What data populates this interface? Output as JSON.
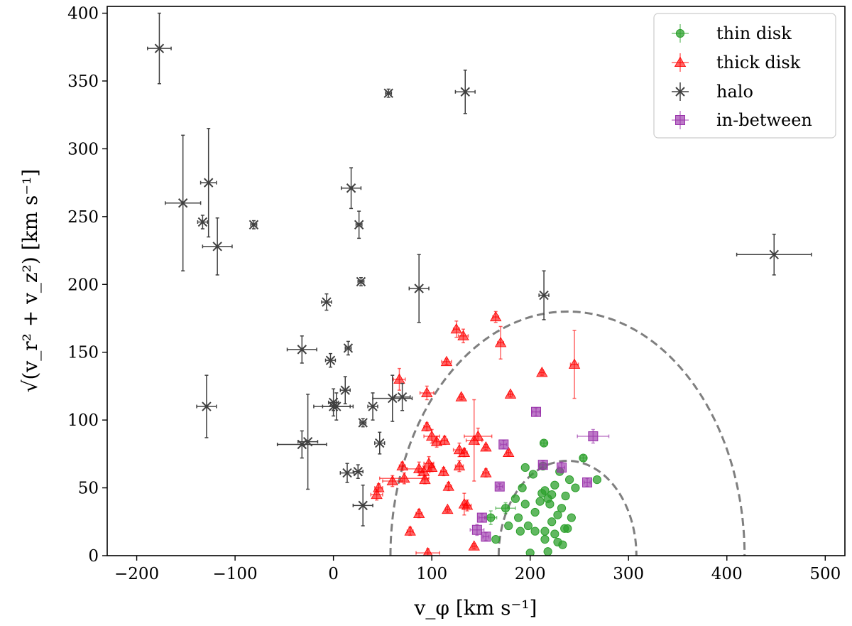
{
  "chart_data": {
    "type": "scatter",
    "title": "",
    "xlabel": "v_φ [km s⁻¹]",
    "ylabel": "√(v_r² + v_z²) [km s⁻¹]",
    "xlim": [
      -230,
      520
    ],
    "ylim": [
      0,
      405
    ],
    "x_ticks": [
      -200,
      -100,
      0,
      100,
      200,
      300,
      400,
      500
    ],
    "y_ticks": [
      0,
      50,
      100,
      150,
      200,
      250,
      300,
      350,
      400
    ],
    "grid": false,
    "legend_position": "top-right",
    "boundaries": [
      {
        "name": "inner-dashed-boundary",
        "center_x": 238,
        "radius": 70,
        "color": "#7f7f7f"
      },
      {
        "name": "outer-dashed-boundary",
        "center_x": 238,
        "radius": 180,
        "color": "#7f7f7f"
      }
    ],
    "series": [
      {
        "name": "thin disk",
        "marker": "circle",
        "color": "#2ca02c",
        "points": [
          [
            160,
            28,
            6,
            5
          ],
          [
            175,
            35,
            10,
            4
          ],
          [
            165,
            12,
            0,
            0
          ],
          [
            185,
            42,
            0,
            0
          ],
          [
            195,
            38,
            0,
            0
          ],
          [
            178,
            22,
            0,
            0
          ],
          [
            188,
            28,
            0,
            0
          ],
          [
            198,
            22,
            0,
            0
          ],
          [
            205,
            18,
            0,
            0
          ],
          [
            215,
            18,
            0,
            0
          ],
          [
            225,
            16,
            0,
            0
          ],
          [
            235,
            20,
            0,
            0
          ],
          [
            238,
            20,
            0,
            0
          ],
          [
            190,
            18,
            0,
            0
          ],
          [
            205,
            32,
            0,
            0
          ],
          [
            210,
            40,
            0,
            0
          ],
          [
            212,
            46,
            0,
            0
          ],
          [
            215,
            48,
            0,
            0
          ],
          [
            218,
            42,
            0,
            0
          ],
          [
            222,
            45,
            0,
            0
          ],
          [
            220,
            38,
            0,
            0
          ],
          [
            228,
            30,
            0,
            0
          ],
          [
            232,
            35,
            0,
            0
          ],
          [
            236,
            44,
            0,
            0
          ],
          [
            222,
            25,
            0,
            0
          ],
          [
            215,
            12,
            0,
            0
          ],
          [
            200,
            2,
            0,
            0
          ],
          [
            218,
            3,
            0,
            0
          ],
          [
            228,
            10,
            0,
            0
          ],
          [
            233,
            8,
            0,
            0
          ],
          [
            195,
            65,
            0,
            0
          ],
          [
            203,
            60,
            0,
            0
          ],
          [
            213,
            66,
            0,
            0
          ],
          [
            214,
            83,
            3,
            2
          ],
          [
            230,
            62,
            0,
            0
          ],
          [
            240,
            56,
            0,
            0
          ],
          [
            254,
            72,
            3,
            2
          ],
          [
            268,
            56,
            0,
            0
          ],
          [
            246,
            50,
            0,
            0
          ],
          [
            242,
            28,
            0,
            0
          ],
          [
            192,
            50,
            0,
            0
          ],
          [
            225,
            52,
            0,
            0
          ]
        ]
      },
      {
        "name": "thick disk",
        "marker": "triangle",
        "color": "#ff0000",
        "points": [
          [
            165,
            176,
            3,
            4
          ],
          [
            170,
            157,
            3,
            12
          ],
          [
            125,
            167,
            3,
            6
          ],
          [
            132,
            162,
            5,
            5
          ],
          [
            115,
            143,
            5,
            2
          ],
          [
            67,
            130,
            6,
            8
          ],
          [
            95,
            120,
            7,
            5
          ],
          [
            130,
            117,
            2,
            2
          ],
          [
            180,
            119,
            2,
            2
          ],
          [
            212,
            135,
            2,
            2
          ],
          [
            245,
            141,
            4,
            25
          ],
          [
            100,
            88,
            8,
            5
          ],
          [
            105,
            84,
            4,
            4
          ],
          [
            113,
            85,
            3,
            3
          ],
          [
            95,
            95,
            3,
            3
          ],
          [
            143,
            85,
            8,
            30
          ],
          [
            147,
            88,
            14,
            6
          ],
          [
            128,
            78,
            6,
            5
          ],
          [
            133,
            76,
            3,
            3
          ],
          [
            155,
            80,
            2,
            2
          ],
          [
            178,
            76,
            2,
            2
          ],
          [
            92,
            62,
            6,
            4
          ],
          [
            97,
            68,
            5,
            5
          ],
          [
            100,
            65,
            3,
            3
          ],
          [
            112,
            62,
            3,
            3
          ],
          [
            128,
            66,
            4,
            4
          ],
          [
            155,
            61,
            3,
            3
          ],
          [
            70,
            66,
            3,
            3
          ],
          [
            72,
            57,
            25,
            4
          ],
          [
            87,
            64,
            12,
            5
          ],
          [
            93,
            56,
            3,
            3
          ],
          [
            117,
            51,
            3,
            3
          ],
          [
            60,
            55,
            10,
            4
          ],
          [
            46,
            50,
            4,
            3
          ],
          [
            44,
            45,
            6,
            4
          ],
          [
            87,
            31,
            3,
            3
          ],
          [
            116,
            34,
            2,
            2
          ],
          [
            133,
            38,
            2,
            8
          ],
          [
            136,
            37,
            4,
            4
          ],
          [
            143,
            7,
            2,
            2
          ],
          [
            78,
            18,
            3,
            3
          ],
          [
            96,
            2,
            12,
            3
          ]
        ]
      },
      {
        "name": "halo",
        "marker": "x",
        "color": "#404040",
        "points": [
          [
            -177,
            374,
            12,
            26
          ],
          [
            56,
            341,
            3,
            3
          ],
          [
            134,
            342,
            10,
            16
          ],
          [
            -153,
            260,
            18,
            50
          ],
          [
            -127,
            275,
            8,
            40
          ],
          [
            -133,
            246,
            5,
            5
          ],
          [
            -118,
            228,
            15,
            21
          ],
          [
            -81,
            244,
            3,
            3
          ],
          [
            18,
            271,
            10,
            15
          ],
          [
            26,
            244,
            3,
            10
          ],
          [
            28,
            202,
            3,
            3
          ],
          [
            87,
            197,
            10,
            25
          ],
          [
            -7,
            187,
            5,
            6
          ],
          [
            15,
            153,
            3,
            5
          ],
          [
            -3,
            144,
            5,
            5
          ],
          [
            -32,
            152,
            15,
            10
          ],
          [
            214,
            192,
            5,
            18
          ],
          [
            448,
            222,
            38,
            15
          ],
          [
            -129,
            110,
            10,
            23
          ],
          [
            12,
            122,
            5,
            10
          ],
          [
            0,
            113,
            5,
            10
          ],
          [
            0,
            110,
            20,
            3
          ],
          [
            3,
            110,
            14,
            10
          ],
          [
            30,
            98,
            3,
            3
          ],
          [
            40,
            110,
            5,
            10
          ],
          [
            60,
            116,
            20,
            17
          ],
          [
            70,
            117,
            8,
            10
          ],
          [
            -32,
            82,
            25,
            10
          ],
          [
            -26,
            84,
            10,
            35
          ],
          [
            47,
            83,
            5,
            8
          ],
          [
            14,
            61,
            7,
            7
          ],
          [
            25,
            62,
            5,
            5
          ],
          [
            30,
            37,
            10,
            15
          ]
        ]
      },
      {
        "name": "in-between",
        "marker": "square",
        "color": "#9932aa",
        "points": [
          [
            206,
            106,
            4,
            3
          ],
          [
            173,
            82,
            3,
            3
          ],
          [
            213,
            67,
            4,
            3
          ],
          [
            232,
            65,
            3,
            4
          ],
          [
            264,
            88,
            16,
            5
          ],
          [
            169,
            51,
            3,
            2
          ],
          [
            258,
            54,
            3,
            3
          ],
          [
            151,
            28,
            3,
            3
          ],
          [
            146,
            19,
            7,
            4
          ],
          [
            155,
            14,
            3,
            3
          ]
        ]
      }
    ]
  }
}
